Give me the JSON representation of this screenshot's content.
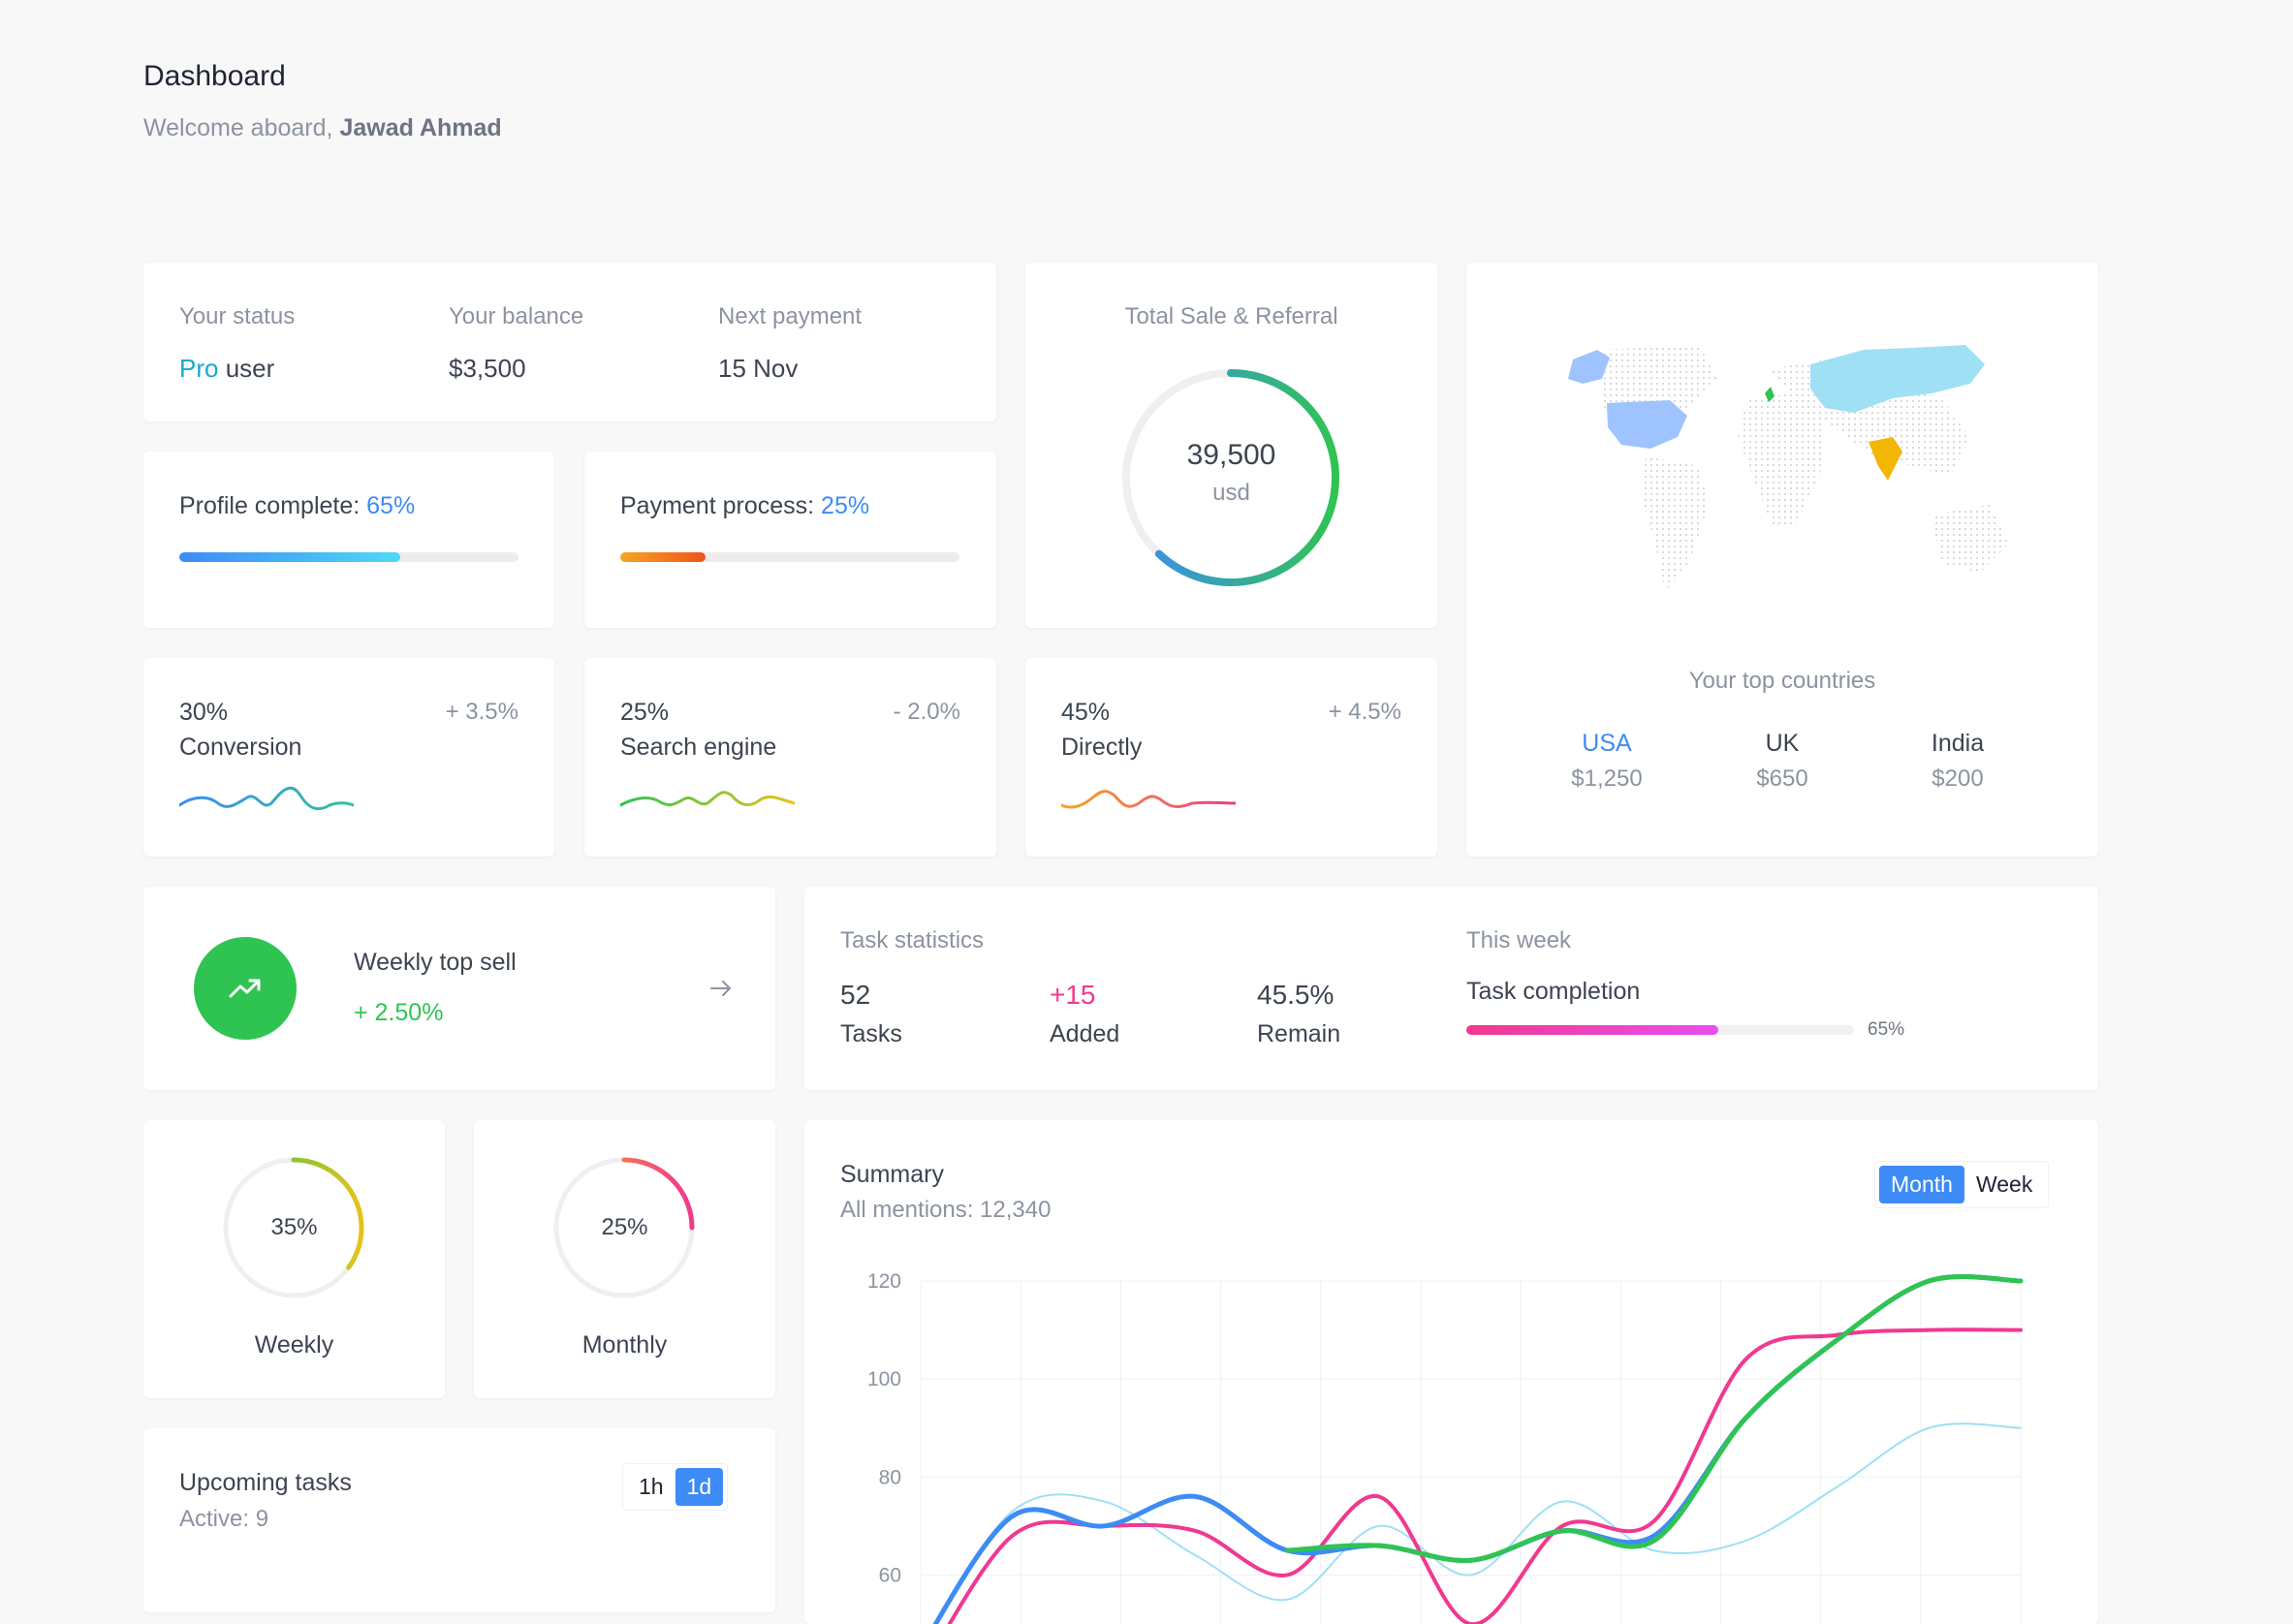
{
  "header": {
    "title": "Dashboard",
    "welcome": "Welcome aboard,",
    "user_name": "Jawad Ahmad"
  },
  "status_card": {
    "status_label": "Your status",
    "status_pro": "Pro",
    "status_user": "user",
    "balance_label": "Your balance",
    "balance_value": "$3,500",
    "payment_label": "Next payment",
    "payment_value": "15 Nov"
  },
  "profile_complete": {
    "label": "Profile complete:",
    "percent_text": "65%",
    "value": 0.65
  },
  "payment_process": {
    "label": "Payment process:",
    "percent_text": "25%",
    "value": 0.25
  },
  "total_sale": {
    "title": "Total Sale & Referral",
    "amount": "39,500",
    "unit": "usd",
    "ring_value": 0.62
  },
  "top_countries": {
    "title": "Your top countries",
    "countries": [
      {
        "name": "USA",
        "amount": "$1,250",
        "color": "#3d8bf5"
      },
      {
        "name": "UK",
        "amount": "$650",
        "color": "#3d4451"
      },
      {
        "name": "India",
        "amount": "$200",
        "color": "#3d4451"
      }
    ],
    "map_colors": {
      "usa": "#9ec3ff",
      "uk": "#2fc452",
      "india": "#f2b705",
      "russia": "#9fe0f5",
      "alaska": "#9ec3ff"
    }
  },
  "mini_stats": [
    {
      "percent": "30%",
      "delta": "+ 3.5%",
      "label": "Conversion"
    },
    {
      "percent": "25%",
      "delta": "- 2.0%",
      "label": "Search engine"
    },
    {
      "percent": "45%",
      "delta": "+ 4.5%",
      "label": "Directly"
    }
  ],
  "weekly_top_sell": {
    "title": "Weekly top sell",
    "change": "+ 2.50%",
    "icon": "trending-up-icon",
    "arrow": "arrow-right-icon"
  },
  "task_statistics": {
    "title": "Task statistics",
    "items": [
      {
        "value": "52",
        "label": "Tasks"
      },
      {
        "value": "+15",
        "label": "Added"
      },
      {
        "value": "45.5%",
        "label": "Remain"
      }
    ],
    "week_label": "This week",
    "completion_label": "Task completion",
    "completion_text": "65%",
    "completion_value": 0.65
  },
  "rings": [
    {
      "value_text": "35%",
      "label": "Weekly",
      "value": 0.35
    },
    {
      "value_text": "25%",
      "label": "Monthly",
      "value": 0.25
    }
  ],
  "upcoming_tasks": {
    "title": "Upcoming tasks",
    "active": "Active: 9",
    "options": [
      "1h",
      "1d"
    ],
    "selected": "1d"
  },
  "summary": {
    "title": "Summary",
    "subtitle": "All mentions: 12,340",
    "options": [
      "Month",
      "Week"
    ],
    "selected": "Month"
  },
  "chart_data": {
    "type": "line",
    "title": "",
    "xlabel": "",
    "ylabel": "",
    "ylim": [
      50,
      120
    ],
    "yticks": [
      60,
      80,
      100,
      120
    ],
    "grid": true,
    "x": [
      0,
      1,
      2,
      3,
      4,
      5,
      6,
      7,
      8,
      9,
      10,
      11,
      12
    ],
    "series": [
      {
        "color": "#3d8bf5",
        "values": [
          45,
          72,
          70,
          76,
          65,
          66,
          63,
          69,
          68,
          92,
          108,
          120,
          120
        ]
      },
      {
        "color": "#2fc452",
        "values": [
          null,
          null,
          null,
          null,
          65,
          66,
          63,
          69,
          67,
          92,
          108,
          120,
          120
        ]
      },
      {
        "color": "#f0398f",
        "values": [
          40,
          68,
          70,
          69,
          60,
          76,
          50,
          70,
          71,
          104,
          109,
          110,
          110
        ]
      },
      {
        "color": "#9fe0f5",
        "values": [
          45,
          73,
          75,
          64,
          55,
          70,
          60,
          75,
          65,
          67,
          78,
          90,
          90
        ]
      }
    ]
  }
}
